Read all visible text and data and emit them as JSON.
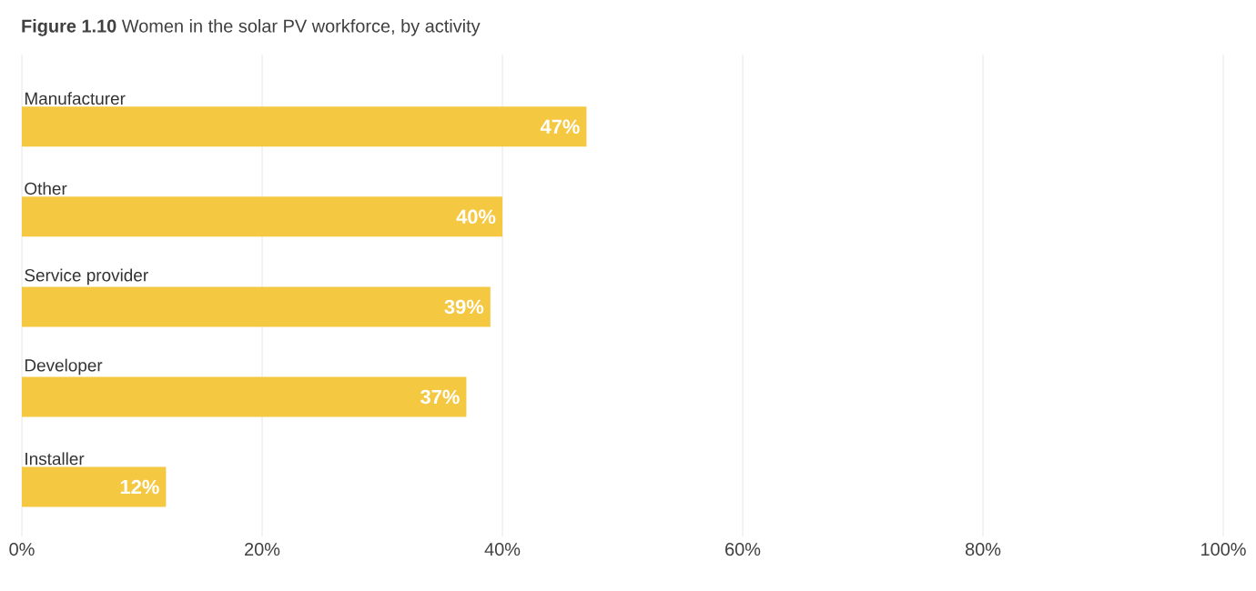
{
  "chart_data": {
    "type": "bar",
    "orientation": "horizontal",
    "title": "**Figure 1.10**  Women in the solar PV workforce, by activity",
    "categories": [
      "Manufacturer",
      "Other",
      "Service provider",
      "Developer",
      "Installer"
    ],
    "values": [
      47,
      40,
      39,
      37,
      12
    ],
    "value_labels": [
      "47%",
      "40%",
      "39%",
      "37%",
      "12%"
    ],
    "color": "#f5c842",
    "xlim": [
      0,
      100
    ],
    "xticks": [
      {
        "value": 0,
        "label": "0%"
      },
      {
        "value": 20,
        "label": "20%"
      },
      {
        "value": 40,
        "label": "40%"
      },
      {
        "value": 60,
        "label": "60%"
      },
      {
        "value": 80,
        "label": "80%"
      },
      {
        "value": 100,
        "label": "100%"
      }
    ],
    "grid": "x"
  }
}
